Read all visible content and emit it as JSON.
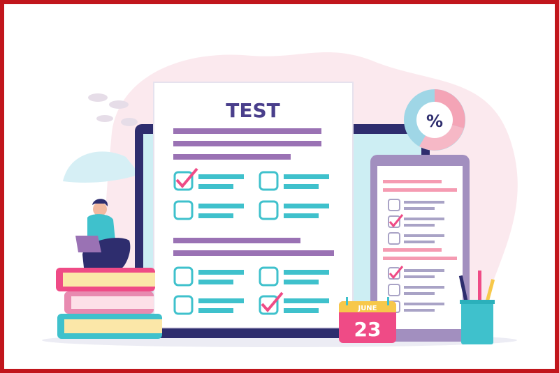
{
  "illustration": {
    "test_title": "TEST",
    "pie_symbol": "%",
    "calendar": {
      "month": "JUNE",
      "day": "23"
    },
    "colors": {
      "frame": "#c1161c",
      "navy": "#2e2d6e",
      "purple_line": "#9a72b4",
      "teal": "#3fc1cc",
      "pink": "#f0447e",
      "title": "#4a3f8c"
    },
    "test_checkboxes": [
      {
        "checked": true
      },
      {
        "checked": false
      },
      {
        "checked": false
      },
      {
        "checked": false
      },
      {
        "checked": false
      },
      {
        "checked": false
      },
      {
        "checked": false
      },
      {
        "checked": true
      }
    ],
    "phone_checkboxes": [
      {
        "checked": false
      },
      {
        "checked": true
      },
      {
        "checked": false
      },
      {
        "checked": true
      },
      {
        "checked": false
      },
      {
        "checked": false
      }
    ]
  }
}
